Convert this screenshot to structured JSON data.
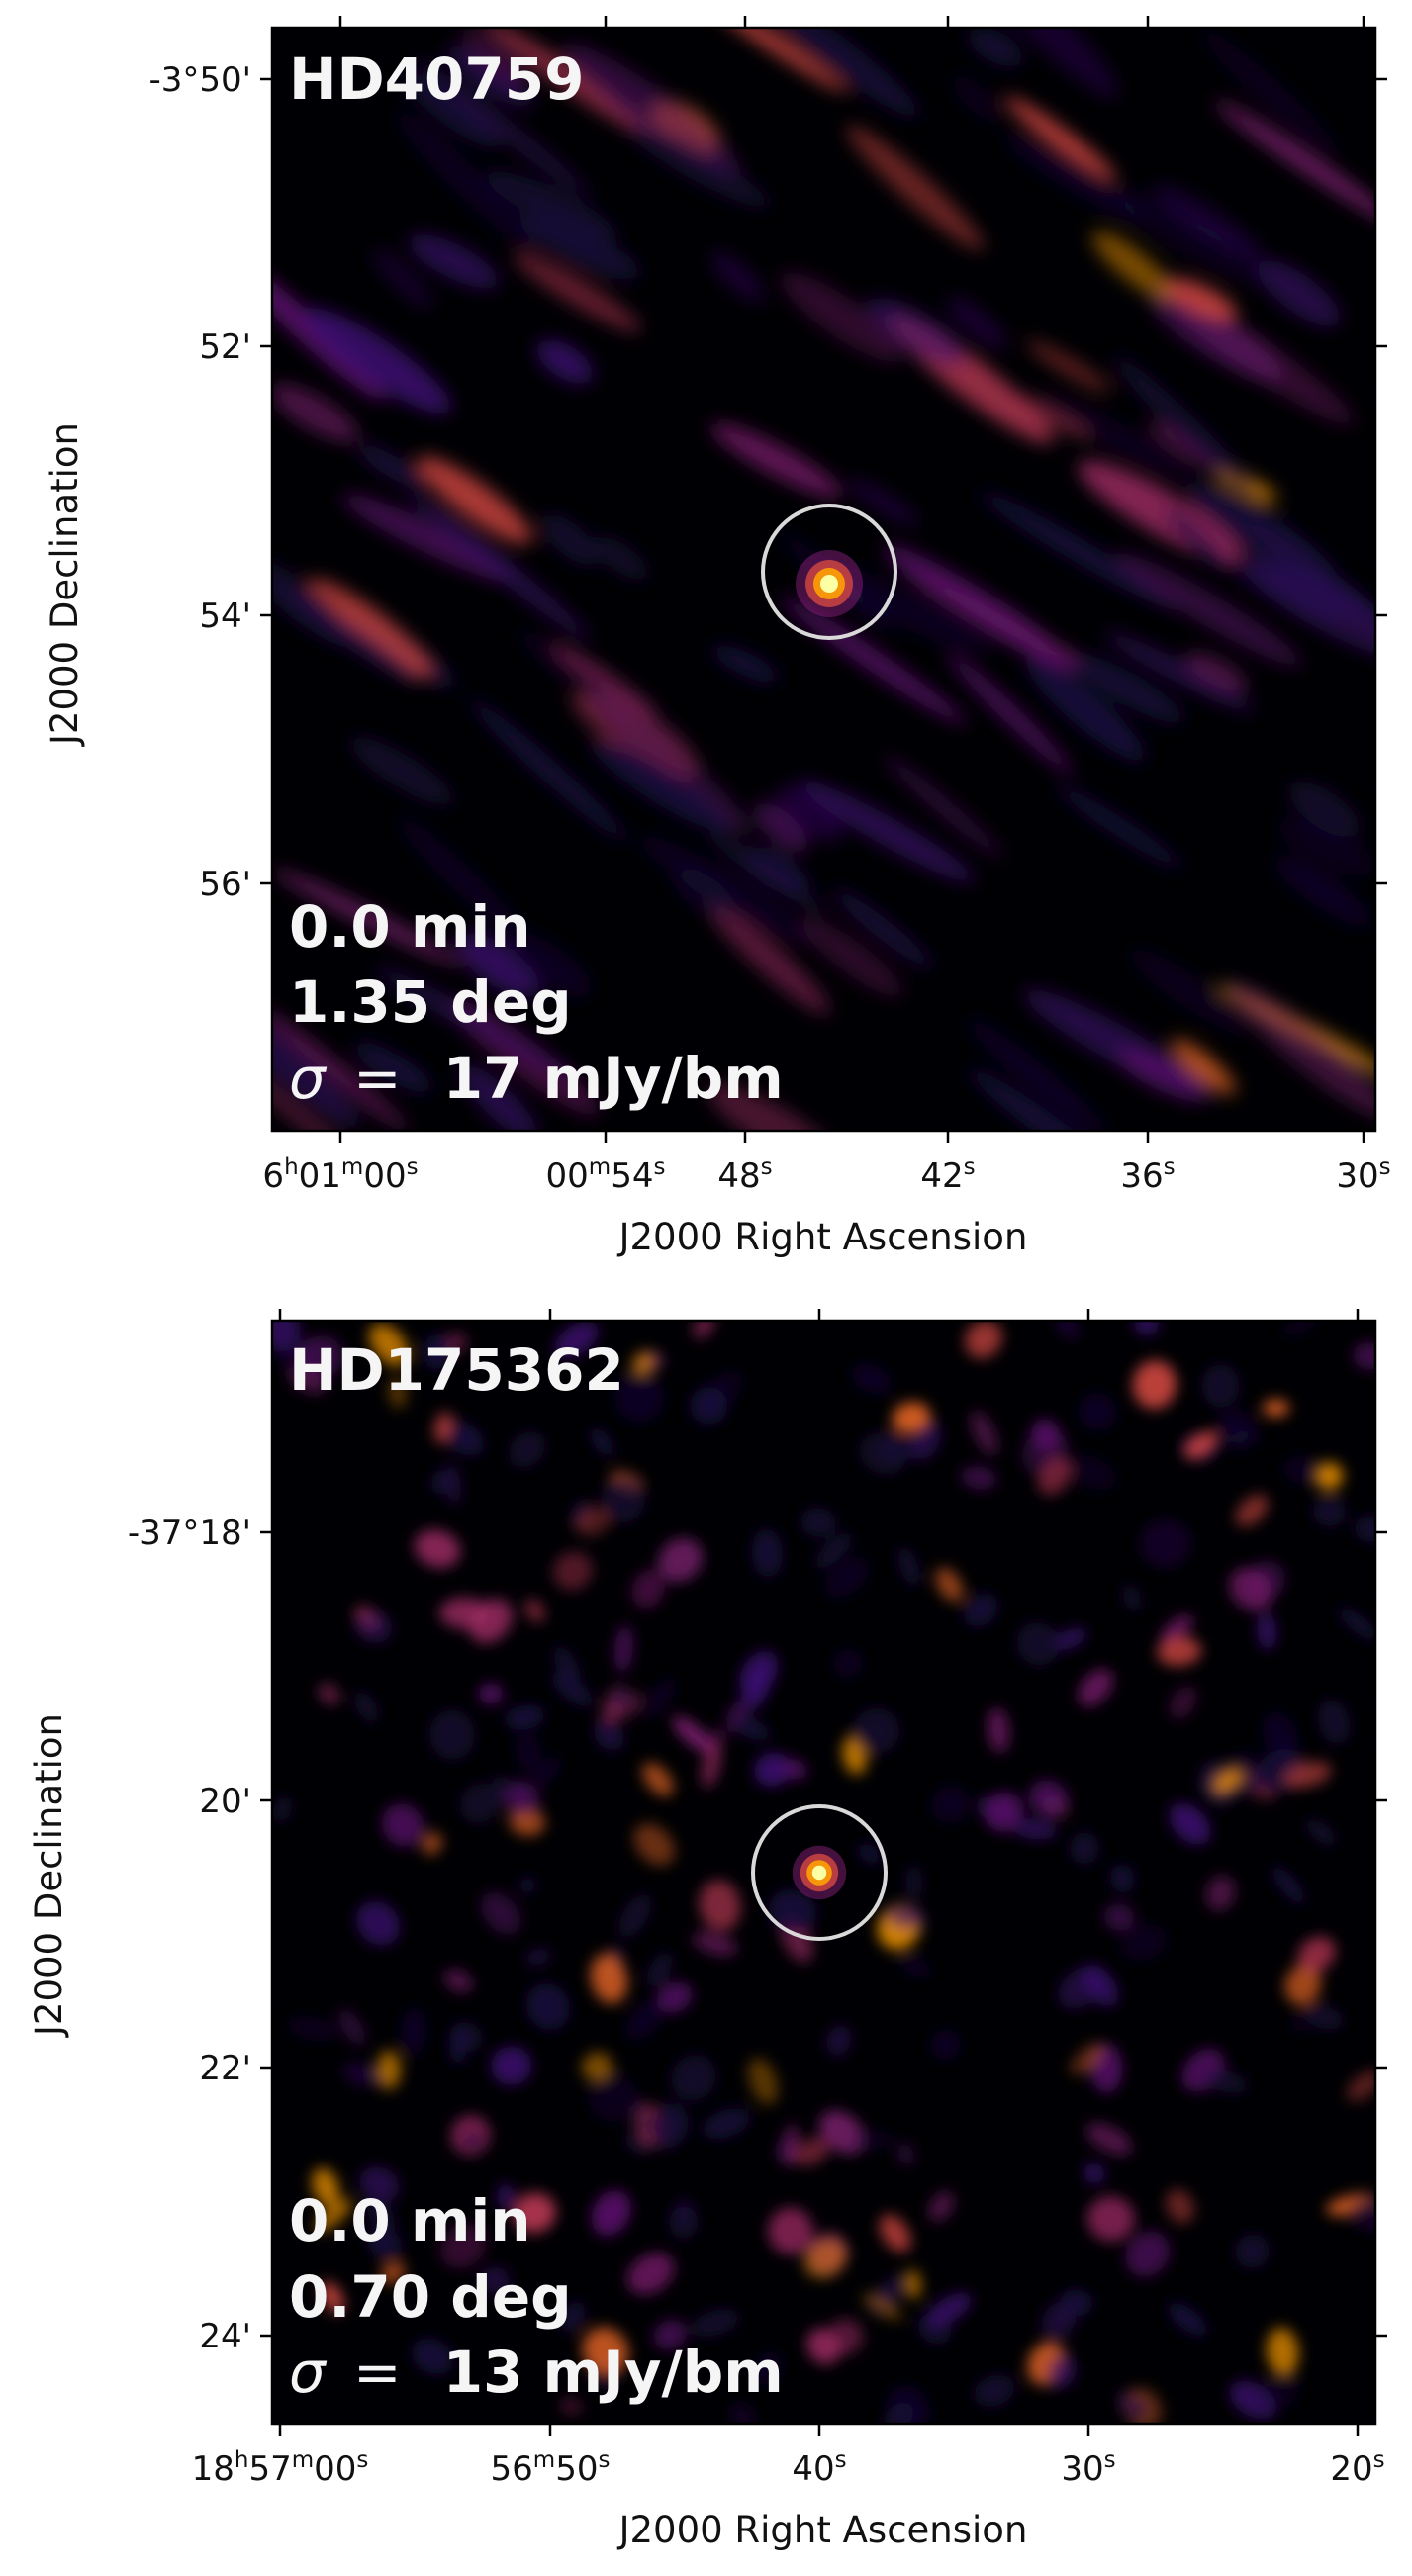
{
  "chart_data": [
    {
      "type": "heatmap",
      "name": "HD40759",
      "colormap": "inferno",
      "colors": {
        "background": "#000004",
        "ring": "#d9d9d9",
        "text": "#f5f5f5"
      },
      "xlabel": "J2000 Right Ascension",
      "ylabel": "J2000 Declination",
      "x_ticks": [
        {
          "label": [
            "6",
            "h",
            "01",
            "m",
            "00",
            "s"
          ]
        },
        {
          "label": [
            "00",
            "m",
            "54",
            "s"
          ]
        },
        {
          "label": [
            "48",
            "s"
          ]
        },
        {
          "label": [
            "42",
            "s"
          ]
        },
        {
          "label": [
            "36",
            "s"
          ]
        },
        {
          "label": [
            "30",
            "s"
          ]
        }
      ],
      "y_ticks": [
        "-3°50'",
        "52'",
        "54'",
        "56'"
      ],
      "annotations": [
        "0.0 min",
        "1.35 deg"
      ],
      "sigma": {
        "symbol": "σ",
        "eq": "=",
        "value": "17 mJy/bm"
      },
      "source_circle": {
        "ra": "6h00m45.6s",
        "dec": "-3°53'40\""
      },
      "grid": false
    },
    {
      "type": "heatmap",
      "name": "HD175362",
      "colormap": "inferno",
      "colors": {
        "background": "#000004",
        "ring": "#d9d9d9",
        "text": "#f5f5f5"
      },
      "xlabel": "J2000 Right Ascension",
      "ylabel": "J2000 Declination",
      "x_ticks": [
        {
          "label": [
            "18",
            "h",
            "57",
            "m",
            "00",
            "s"
          ]
        },
        {
          "label": [
            "56",
            "m",
            "50",
            "s"
          ]
        },
        {
          "label": [
            "40",
            "s"
          ]
        },
        {
          "label": [
            "30",
            "s"
          ]
        },
        {
          "label": [
            "20",
            "s"
          ]
        }
      ],
      "y_ticks": [
        "-37°18'",
        "20'",
        "22'",
        "24'"
      ],
      "annotations": [
        "0.0 min",
        "0.70 deg"
      ],
      "sigma": {
        "symbol": "σ",
        "eq": "=",
        "value": "13 mJy/bm"
      },
      "source_circle": {
        "ra": "18h56m40.0s",
        "dec": "-37°20'30\""
      },
      "grid": false
    }
  ]
}
